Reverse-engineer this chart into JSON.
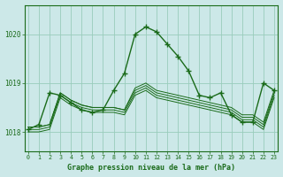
{
  "title": "Graphe pression niveau de la mer (hPa)",
  "bg_color": "#cce8e8",
  "grid_color": "#99ccbb",
  "line_color": "#1a6b1a",
  "x_ticks": [
    0,
    1,
    2,
    3,
    4,
    5,
    6,
    7,
    8,
    9,
    10,
    11,
    12,
    13,
    14,
    15,
    16,
    17,
    18,
    19,
    20,
    21,
    22,
    23
  ],
  "y_ticks": [
    1018,
    1019,
    1020
  ],
  "ylim": [
    1017.6,
    1020.6
  ],
  "xlim": [
    -0.3,
    23.3
  ],
  "main_x": [
    0,
    1,
    2,
    3,
    4,
    5,
    6,
    7,
    8,
    9,
    10,
    11,
    12,
    13,
    14,
    15,
    16,
    17,
    18,
    19,
    20,
    21,
    22,
    23
  ],
  "main_y": [
    1018.05,
    1018.15,
    1018.8,
    1018.75,
    1018.6,
    1018.45,
    1018.4,
    1018.45,
    1018.85,
    1019.2,
    1020.0,
    1020.15,
    1020.05,
    1019.8,
    1019.55,
    1019.25,
    1018.75,
    1018.7,
    1018.8,
    1018.35,
    1018.2,
    1018.2,
    1019.0,
    1018.85
  ],
  "line2_y": [
    1018.1,
    1018.1,
    1018.15,
    1018.8,
    1018.65,
    1018.55,
    1018.5,
    1018.5,
    1018.5,
    1018.45,
    1018.9,
    1019.0,
    1018.85,
    1018.8,
    1018.75,
    1018.7,
    1018.65,
    1018.6,
    1018.55,
    1018.5,
    1018.35,
    1018.35,
    1018.2,
    1018.85
  ],
  "line3_y": [
    1018.1,
    1018.1,
    1018.15,
    1018.8,
    1018.65,
    1018.55,
    1018.5,
    1018.5,
    1018.5,
    1018.45,
    1018.85,
    1018.95,
    1018.8,
    1018.75,
    1018.7,
    1018.65,
    1018.6,
    1018.55,
    1018.5,
    1018.45,
    1018.3,
    1018.3,
    1018.15,
    1018.8
  ],
  "line4_y": [
    1018.05,
    1018.05,
    1018.1,
    1018.75,
    1018.6,
    1018.5,
    1018.45,
    1018.45,
    1018.45,
    1018.4,
    1018.8,
    1018.9,
    1018.75,
    1018.7,
    1018.65,
    1018.6,
    1018.55,
    1018.5,
    1018.45,
    1018.4,
    1018.25,
    1018.25,
    1018.1,
    1018.75
  ],
  "line5_y": [
    1018.0,
    1018.0,
    1018.05,
    1018.7,
    1018.55,
    1018.45,
    1018.4,
    1018.4,
    1018.4,
    1018.35,
    1018.75,
    1018.85,
    1018.7,
    1018.65,
    1018.6,
    1018.55,
    1018.5,
    1018.45,
    1018.4,
    1018.35,
    1018.2,
    1018.2,
    1018.05,
    1018.7
  ]
}
